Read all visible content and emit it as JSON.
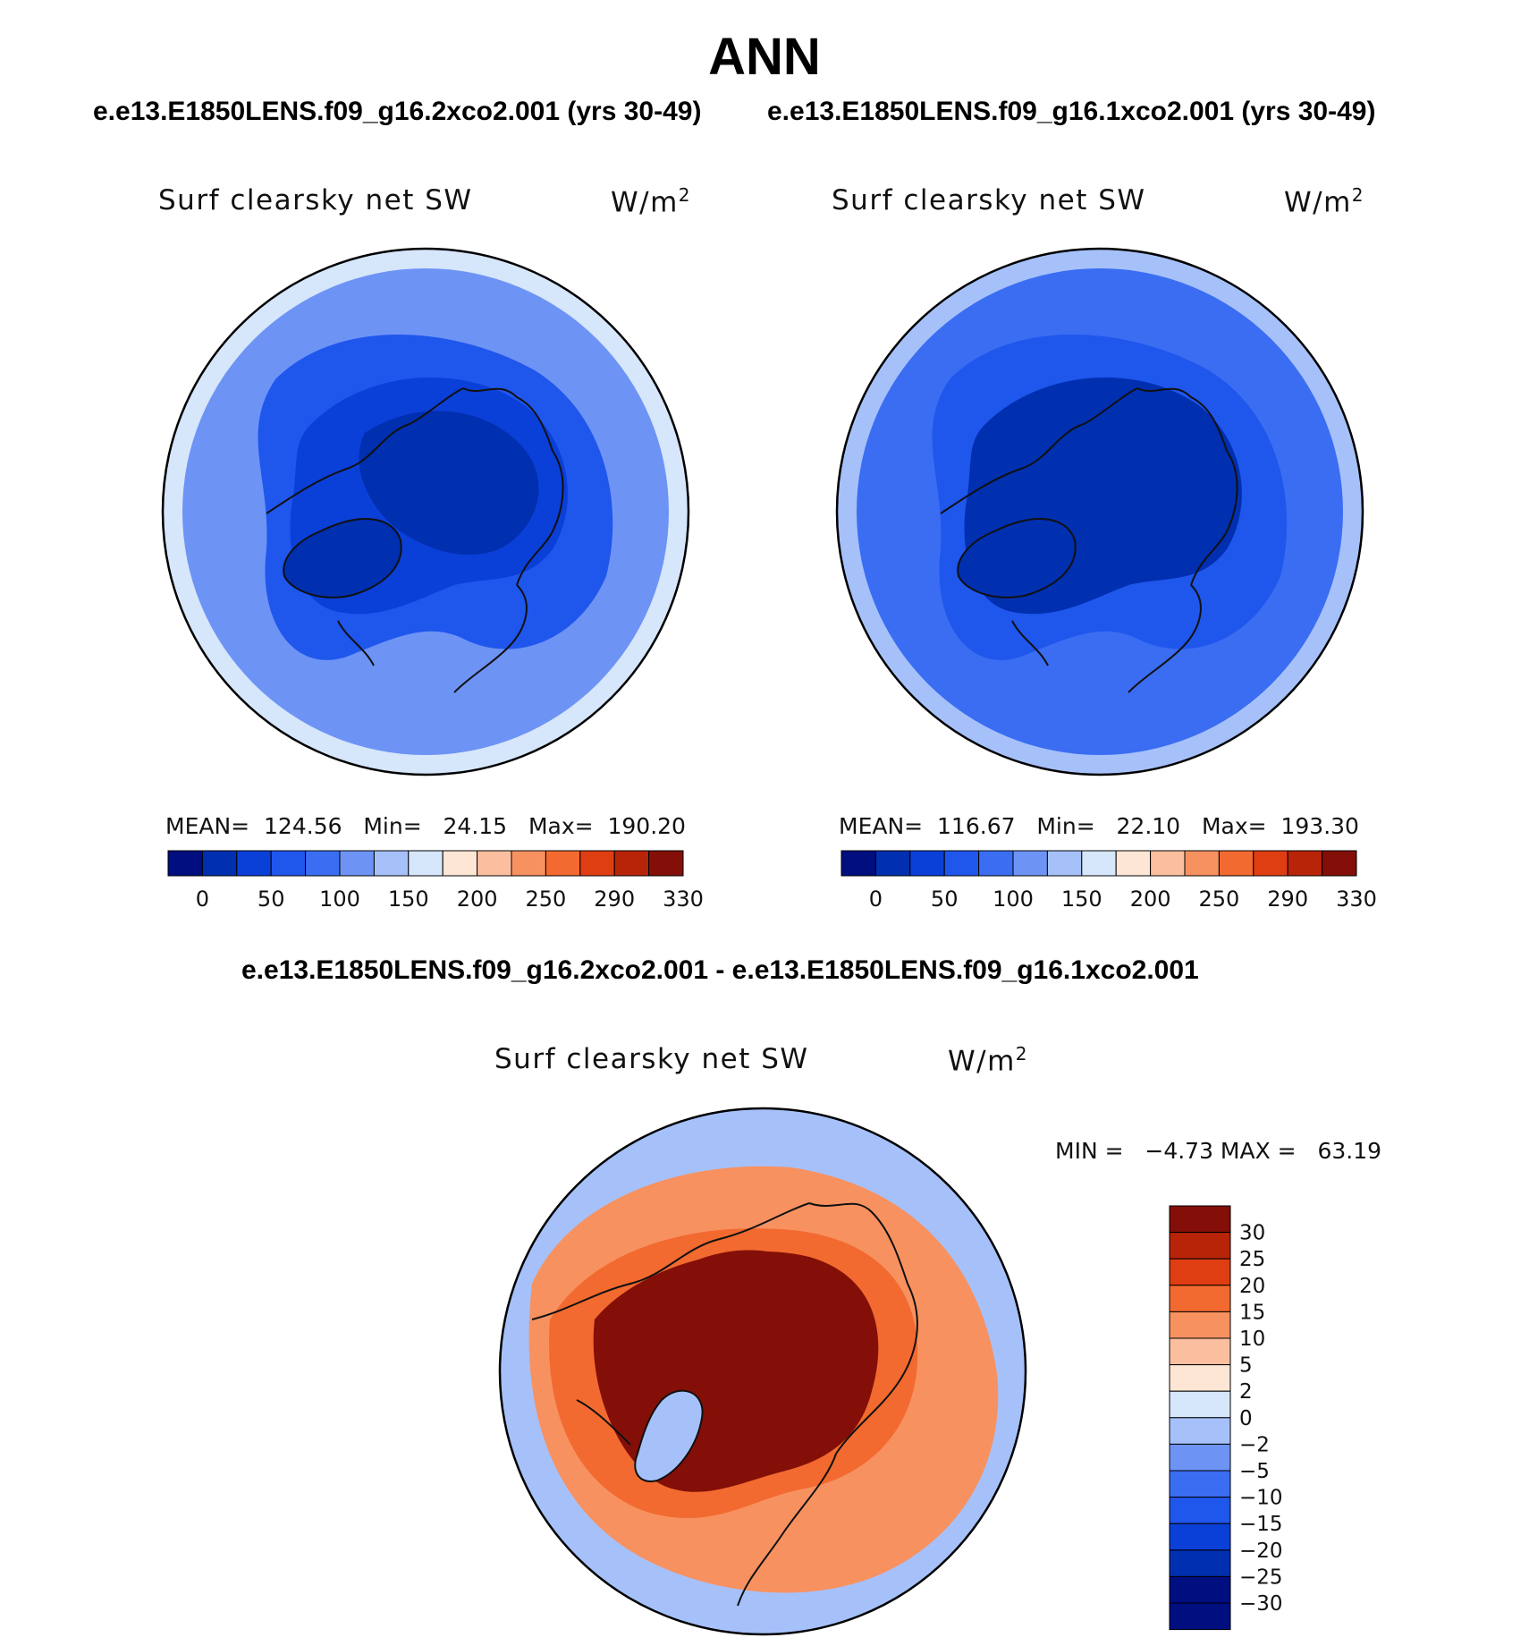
{
  "title": "ANN",
  "case_titles": {
    "left": "e.e13.E1850LENS.f09_g16.2xco2.001 (yrs 30-49)",
    "right": "e.e13.E1850LENS.f09_g16.1xco2.001 (yrs 30-49)",
    "diff": "e.e13.E1850LENS.f09_g16.2xco2.001 - e.e13.E1850LENS.f09_g16.1xco2.001"
  },
  "colors": {
    "abs_scale": [
      "#000e80",
      "#002fb0",
      "#0a3fd8",
      "#1f56ec",
      "#3a6df2",
      "#6d93f5",
      "#a6c1fa",
      "#d6e6fb",
      "#fde6d4",
      "#fbbf9f",
      "#f89160",
      "#f26a2f",
      "#df3d12",
      "#b82408",
      "#830f08"
    ],
    "diff_scale": [
      "#000e80",
      "#002fb0",
      "#0a3fd8",
      "#1f56ec",
      "#3a6df2",
      "#6d93f5",
      "#a6c1fa",
      "#d6e6fb",
      "#fde6d4",
      "#fbbf9f",
      "#f89160",
      "#f26a2f",
      "#df3d12",
      "#b82408",
      "#830f08"
    ]
  },
  "chart_data": [
    {
      "type": "heatmap",
      "projection": "north polar stereographic",
      "panel": "top-left",
      "variable": "Surf clearsky net SW",
      "units_base": "W/m",
      "units_exp": "2",
      "mean_label": "MEAN=",
      "mean": "124.56",
      "min_label": "Min=",
      "min": "24.15",
      "max_label": "Max=",
      "max": "190.20",
      "colorbar_ticks": [
        "0",
        "50",
        "100",
        "150",
        "200",
        "250",
        "290",
        "330"
      ],
      "field_values": {
        "pole": 30,
        "arctic_ocean": 50,
        "land_mid": 90,
        "subarctic": 125,
        "rim": 175
      }
    },
    {
      "type": "heatmap",
      "projection": "north polar stereographic",
      "panel": "top-right",
      "variable": "Surf clearsky net SW",
      "units_base": "W/m",
      "units_exp": "2",
      "mean_label": "MEAN=",
      "mean": "116.67",
      "min_label": "Min=",
      "min": "22.10",
      "max_label": "Max=",
      "max": "193.30",
      "colorbar_ticks": [
        "0",
        "50",
        "100",
        "150",
        "200",
        "250",
        "290",
        "330"
      ],
      "field_values": {
        "pole": 25,
        "arctic_ocean": 40,
        "land_mid": 80,
        "subarctic": 115,
        "rim": 170
      }
    },
    {
      "type": "heatmap",
      "projection": "north polar stereographic",
      "panel": "bottom",
      "variable": "Surf clearsky net SW",
      "units_base": "W/m",
      "units_exp": "2",
      "minmax_text": "MIN =   −4.73 MAX =   63.19",
      "colorbar_ticks": [
        "30",
        "25",
        "20",
        "15",
        "10",
        "5",
        "2",
        "0",
        "−2",
        "−5",
        "−10",
        "−15",
        "−20",
        "−25",
        "−30"
      ],
      "field_values": {
        "pole": 35,
        "arctic_ocean": 25,
        "land_mid": 12,
        "subarctic": 5,
        "rim": -3
      }
    }
  ]
}
